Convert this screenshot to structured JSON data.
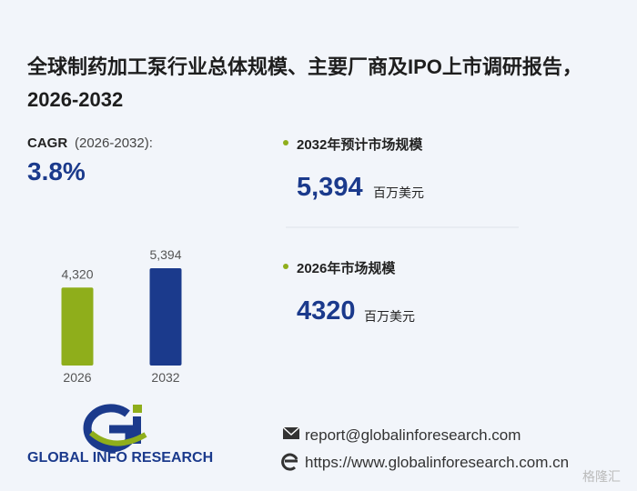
{
  "title": "全球制药加工泵行业总体规模、主要厂商及IPO上市调研报告，2026-2032",
  "cagr": {
    "label": "CAGR",
    "period": "(2026-2032):",
    "value": "3.8%"
  },
  "stats": [
    {
      "label": "2032年预计市场规模",
      "value": "5,394",
      "unit": "百万美元"
    },
    {
      "label": "2026年市场规模",
      "value": "4320",
      "unit": "百万美元"
    }
  ],
  "chart_data": {
    "type": "bar",
    "categories": [
      "2026",
      "2032"
    ],
    "values": [
      4320,
      5394
    ],
    "value_labels": [
      "4,320",
      "5,394"
    ],
    "colors": [
      "#8fae1b",
      "#1b3a8c"
    ]
  },
  "logo": "GLOBAL INFO RESEARCH",
  "contact": {
    "email": "report@globalinforesearch.com",
    "website": "https://www.globalinforesearch.com.cn"
  },
  "watermark": "格隆汇"
}
